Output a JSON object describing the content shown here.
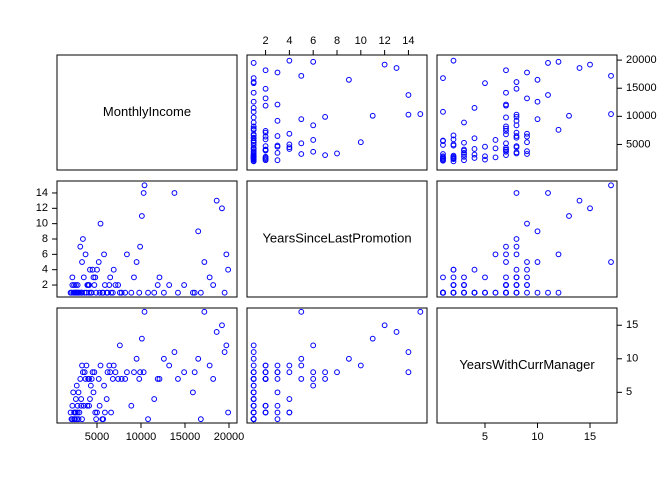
{
  "chart_data": {
    "type": "scatter_matrix",
    "color": "#0000ff",
    "variables": [
      {
        "name": "MonthlyIncome",
        "lim": [
          455,
          20909
        ],
        "ticks": [
          5000,
          10000,
          15000,
          20000
        ],
        "values": [
          2500,
          3200,
          4100,
          5600,
          2100,
          6500,
          2800,
          9800,
          4500,
          13200,
          19500,
          2300,
          3900,
          5200,
          10300,
          2700,
          16800,
          7800,
          4800,
          2200,
          6900,
          11500,
          3400,
          19200,
          2900,
          5900,
          14200,
          8400,
          2600,
          4300,
          17800,
          3100,
          5300,
          10100,
          2400,
          6200,
          12600,
          3700,
          4900,
          19900,
          2000,
          7400,
          9200,
          15900,
          3300,
          5700,
          11900,
          4200,
          2800,
          16500,
          3600,
          6800,
          13800,
          2400,
          4600,
          8900,
          18600,
          3000,
          5400,
          9900,
          2700,
          4000,
          17200,
          6100,
          3500,
          10800,
          2500,
          7100,
          4400,
          19700,
          5000,
          2900,
          12100,
          3800,
          14900,
          6600,
          2200,
          8200,
          4700,
          10400,
          3200,
          5800,
          16100,
          2600,
          7600,
          9500,
          4100,
          18200,
          3300,
          6400
        ]
      },
      {
        "name": "YearsSinceLastPromotion",
        "lim": [
          0.44,
          15.56
        ],
        "ticks": [
          2,
          4,
          6,
          8,
          10,
          12,
          14
        ],
        "values": [
          1,
          1,
          2,
          1,
          1,
          3,
          1,
          1,
          4,
          2,
          1,
          1,
          2,
          5,
          14,
          1,
          1,
          1,
          3,
          2,
          4,
          1,
          8,
          12,
          1,
          2,
          1,
          6,
          1,
          1,
          3,
          7,
          1,
          11,
          2,
          1,
          1,
          6,
          1,
          4,
          1,
          2,
          3,
          1,
          5,
          1,
          2,
          4,
          2,
          9,
          1,
          1,
          14,
          1,
          3,
          1,
          13,
          1,
          10,
          7,
          1,
          2,
          5,
          1,
          3,
          1,
          1,
          2,
          1,
          6,
          4,
          1,
          3,
          1,
          2,
          1,
          3,
          1,
          2,
          15,
          1,
          6,
          1,
          2,
          1,
          5,
          1,
          2,
          1,
          2
        ]
      },
      {
        "name": "YearsWithCurrManager",
        "lim": [
          0.43,
          17.57
        ],
        "ticks": [
          5,
          10,
          15
        ],
        "values": [
          2,
          3,
          7,
          1,
          1,
          8,
          2,
          7,
          8,
          9,
          11,
          5,
          3,
          7,
          8,
          1,
          1,
          7,
          2,
          3,
          9,
          4,
          8,
          15,
          1,
          2,
          7,
          8,
          4,
          6,
          9,
          7,
          3,
          13,
          2,
          8,
          10,
          7,
          1,
          2,
          2,
          7,
          8,
          5,
          9,
          1,
          7,
          4,
          3,
          10,
          8,
          7,
          11,
          1,
          5,
          3,
          14,
          2,
          9,
          8,
          6,
          7,
          17,
          4,
          3,
          1,
          1,
          8,
          7,
          12,
          2,
          5,
          7,
          9,
          8,
          2,
          1,
          7,
          8,
          17,
          4,
          6,
          8,
          2,
          12,
          10,
          3,
          7,
          1,
          9
        ]
      }
    ]
  }
}
